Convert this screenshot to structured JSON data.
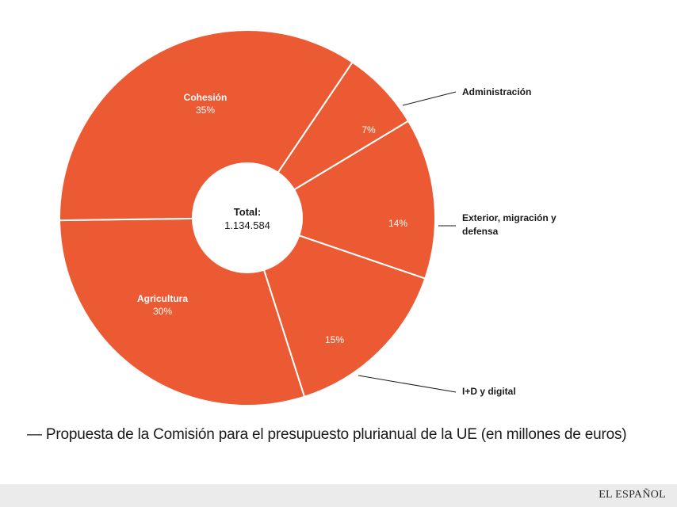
{
  "chart_data": {
    "type": "pie",
    "variant": "donut",
    "title": "Propuesta de la Comisión para el presupuesto plurianual de la UE (en millones de euros)",
    "center": {
      "label": "Total:",
      "value": "1.134.584"
    },
    "slices": [
      {
        "name": "Administración",
        "value": 7,
        "label": "7%",
        "label_position": "outside"
      },
      {
        "name": "Exterior, migración y defensa",
        "value": 14,
        "label": "14%",
        "label_position": "outside"
      },
      {
        "name": "I+D y digital",
        "value": 15,
        "label": "15%",
        "label_position": "outside"
      },
      {
        "name": "Agricultura",
        "value": 30,
        "label": "30%",
        "label_position": "inside"
      },
      {
        "name": "Cohesión",
        "value": 35,
        "label": "35%",
        "label_position": "inside"
      }
    ],
    "colors": {
      "slice": "#ec5a33",
      "separator": "#ffffff"
    }
  },
  "caption": {
    "dash": "—",
    "text": "Propuesta de la Comisión para el presupuesto plurianual de la UE (en millones de euros)"
  },
  "footer": {
    "brand": "EL ESPAÑOL",
    "background_color": "#ebebeb"
  }
}
